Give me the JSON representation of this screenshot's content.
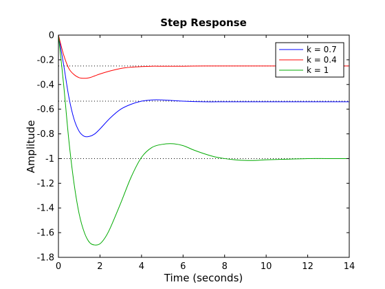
{
  "chart_data": {
    "type": "line",
    "title": "Step Response",
    "xlabel": "Time (seconds)",
    "ylabel": "Amplitude",
    "xlim": [
      0,
      14
    ],
    "ylim": [
      -1.8,
      0
    ],
    "x_ticks": [
      0,
      2,
      4,
      6,
      8,
      10,
      12,
      14
    ],
    "x_tick_labels": [
      "0",
      "2",
      "4",
      "6",
      "8",
      "10",
      "12",
      "14"
    ],
    "y_ticks": [
      0,
      -0.2,
      -0.4,
      -0.6,
      -0.8,
      -1,
      -1.2,
      -1.4,
      -1.6,
      -1.8
    ],
    "y_tick_labels": [
      "0",
      "-0.2",
      "-0.4",
      "-0.6",
      "-0.8",
      "-1",
      "-1.2",
      "-1.4",
      "-1.6",
      "-1.8"
    ],
    "grid": false,
    "legend_position": "top-right",
    "series": [
      {
        "name": "k = 0.7",
        "color": "#0000ff",
        "x": [
          0,
          0.25,
          0.5,
          0.75,
          1.0,
          1.25,
          1.5,
          1.75,
          2.0,
          2.5,
          3.0,
          3.5,
          4.0,
          4.5,
          5.0,
          5.5,
          6.0,
          7.0,
          8.0,
          9.0,
          10.0,
          11.0,
          12.0,
          13.0,
          14.0
        ],
        "y": [
          0,
          -0.24,
          -0.5,
          -0.68,
          -0.78,
          -0.82,
          -0.82,
          -0.8,
          -0.76,
          -0.67,
          -0.6,
          -0.56,
          -0.535,
          -0.525,
          -0.525,
          -0.53,
          -0.535,
          -0.54,
          -0.54,
          -0.54,
          -0.54,
          -0.54,
          -0.54,
          -0.54,
          -0.54
        ],
        "steady_state": -0.535
      },
      {
        "name": "k = 0.4",
        "color": "#ff0000",
        "x": [
          0,
          0.25,
          0.5,
          0.75,
          1.0,
          1.25,
          1.5,
          1.75,
          2.0,
          2.5,
          3.0,
          3.5,
          4.0,
          4.5,
          5.0,
          6.0,
          7.0,
          8.0,
          9.0,
          10.0,
          11.0,
          12.0,
          13.0,
          14.0
        ],
        "y": [
          0,
          -0.16,
          -0.27,
          -0.32,
          -0.345,
          -0.35,
          -0.345,
          -0.33,
          -0.315,
          -0.29,
          -0.27,
          -0.26,
          -0.255,
          -0.252,
          -0.252,
          -0.252,
          -0.25,
          -0.25,
          -0.25,
          -0.25,
          -0.25,
          -0.25,
          -0.25,
          -0.25
        ],
        "steady_state": -0.25
      },
      {
        "name": "k = 1",
        "color": "#00aa00",
        "x": [
          0,
          0.25,
          0.5,
          0.75,
          1.0,
          1.25,
          1.5,
          1.75,
          2.0,
          2.25,
          2.5,
          3.0,
          3.5,
          4.0,
          4.5,
          5.0,
          5.5,
          6.0,
          6.5,
          7.0,
          7.5,
          8.0,
          8.5,
          9.0,
          9.5,
          10.0,
          11.0,
          12.0,
          13.0,
          14.0
        ],
        "y": [
          0,
          -0.4,
          -0.85,
          -1.2,
          -1.45,
          -1.6,
          -1.68,
          -1.7,
          -1.69,
          -1.64,
          -1.56,
          -1.36,
          -1.15,
          -0.99,
          -0.91,
          -0.885,
          -0.88,
          -0.895,
          -0.93,
          -0.96,
          -0.985,
          -1.0,
          -1.01,
          -1.015,
          -1.015,
          -1.01,
          -1.005,
          -1.0,
          -1.0,
          -1.0
        ],
        "steady_state": -1.0
      }
    ]
  }
}
